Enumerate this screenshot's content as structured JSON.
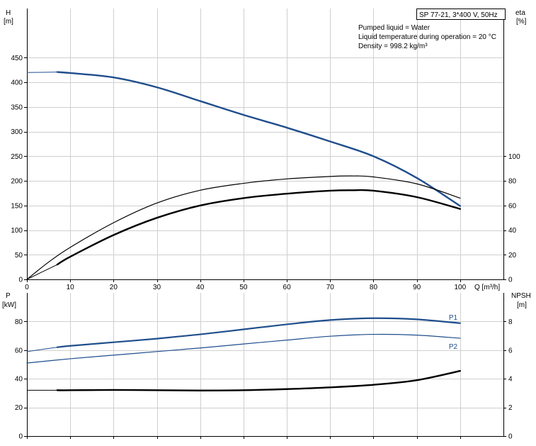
{
  "info": {
    "model": "SP 77-21, 3*400 V, 50Hz",
    "lines": [
      "Pumped liquid = Water",
      "Liquid temperature during operation = 20 °C",
      "Density = 998.2 kg/m³"
    ]
  },
  "colors": {
    "blue": "#1f4e8c",
    "black": "#000000",
    "grid": "#cfcfcf"
  },
  "chart_data": [
    {
      "type": "line",
      "title": "",
      "xlabel": "Q [m³/h]",
      "ylabel_left": "H\n[m]",
      "ylabel_right": "eta\n[%]",
      "xlim": [
        0,
        110
      ],
      "ylim_left": [
        0,
        550
      ],
      "ylim_right": [
        0,
        220
      ],
      "grid": true,
      "x_ticks": [
        0,
        10,
        20,
        30,
        40,
        50,
        60,
        70,
        80,
        90,
        100
      ],
      "left_ticks": [
        0,
        50,
        100,
        150,
        200,
        250,
        300,
        350,
        400,
        450
      ],
      "right_ticks": [
        0,
        20,
        40,
        60,
        80,
        100
      ],
      "series": [
        {
          "axis": "left",
          "color": "#1f4e8c",
          "width": 2.4,
          "dashed_from": 7,
          "points": [
            [
              0,
              420
            ],
            [
              7,
              421
            ],
            [
              10,
              419
            ],
            [
              20,
              410
            ],
            [
              30,
              390
            ],
            [
              40,
              362
            ],
            [
              50,
              334
            ],
            [
              60,
              308
            ],
            [
              70,
              280
            ],
            [
              80,
              250
            ],
            [
              90,
              206
            ],
            [
              100,
              149
            ]
          ]
        },
        {
          "axis": "right",
          "color": "#000000",
          "width": 1.2,
          "points": [
            [
              0,
              0
            ],
            [
              5,
              14
            ],
            [
              10,
              26
            ],
            [
              20,
              46
            ],
            [
              30,
              62
            ],
            [
              40,
              72.4
            ],
            [
              50,
              78
            ],
            [
              60,
              81.6
            ],
            [
              70,
              83.6
            ],
            [
              75,
              84
            ],
            [
              80,
              83.2
            ],
            [
              90,
              77.6
            ],
            [
              100,
              66
            ]
          ]
        },
        {
          "axis": "right",
          "color": "#000000",
          "width": 2.4,
          "dashed_from": 7,
          "points": [
            [
              0,
              0
            ],
            [
              7,
              12
            ],
            [
              10,
              18.4
            ],
            [
              20,
              36
            ],
            [
              30,
              50
            ],
            [
              40,
              60
            ],
            [
              50,
              66
            ],
            [
              60,
              69.6
            ],
            [
              70,
              72
            ],
            [
              75,
              72.4
            ],
            [
              80,
              72
            ],
            [
              90,
              66.8
            ],
            [
              100,
              57.2
            ]
          ]
        }
      ]
    },
    {
      "type": "line",
      "title": "",
      "xlabel": "",
      "ylabel_left": "P\n[kW]",
      "ylabel_right": "NPSH\n[m]",
      "xlim": [
        0,
        110
      ],
      "ylim_left": [
        0,
        100
      ],
      "ylim_right": [
        0,
        10
      ],
      "grid": true,
      "x_ticks": [
        0,
        10,
        20,
        30,
        40,
        50,
        60,
        70,
        80,
        90,
        100
      ],
      "left_ticks": [
        0,
        20,
        40,
        60,
        80
      ],
      "right_ticks": [
        0,
        2,
        4,
        6,
        8
      ],
      "series": [
        {
          "name": "P1",
          "axis": "left",
          "color": "#1f4e8c",
          "width": 2.2,
          "dashed_from": 7,
          "points": [
            [
              0,
              59
            ],
            [
              7,
              62
            ],
            [
              10,
              63
            ],
            [
              20,
              65.5
            ],
            [
              30,
              68
            ],
            [
              40,
              71
            ],
            [
              50,
              74.5
            ],
            [
              60,
              78
            ],
            [
              70,
              81
            ],
            [
              80,
              82.3
            ],
            [
              90,
              81.5
            ],
            [
              100,
              78.8
            ]
          ]
        },
        {
          "name": "P2",
          "axis": "left",
          "color": "#1f4e8c",
          "width": 1.2,
          "points": [
            [
              0,
              51
            ],
            [
              10,
              54
            ],
            [
              20,
              56.5
            ],
            [
              30,
              59
            ],
            [
              40,
              61.5
            ],
            [
              50,
              64.3
            ],
            [
              60,
              67
            ],
            [
              70,
              69.7
            ],
            [
              80,
              71
            ],
            [
              90,
              70.5
            ],
            [
              100,
              68.3
            ]
          ]
        },
        {
          "axis": "right",
          "color": "#000000",
          "width": 2.4,
          "dashed_from": 7,
          "points": [
            [
              0,
              3.2
            ],
            [
              7,
              3.2
            ],
            [
              10,
              3.2
            ],
            [
              20,
              3.22
            ],
            [
              30,
              3.2
            ],
            [
              40,
              3.18
            ],
            [
              50,
              3.2
            ],
            [
              60,
              3.28
            ],
            [
              70,
              3.4
            ],
            [
              80,
              3.58
            ],
            [
              90,
              3.9
            ],
            [
              100,
              4.55
            ]
          ]
        }
      ]
    }
  ]
}
